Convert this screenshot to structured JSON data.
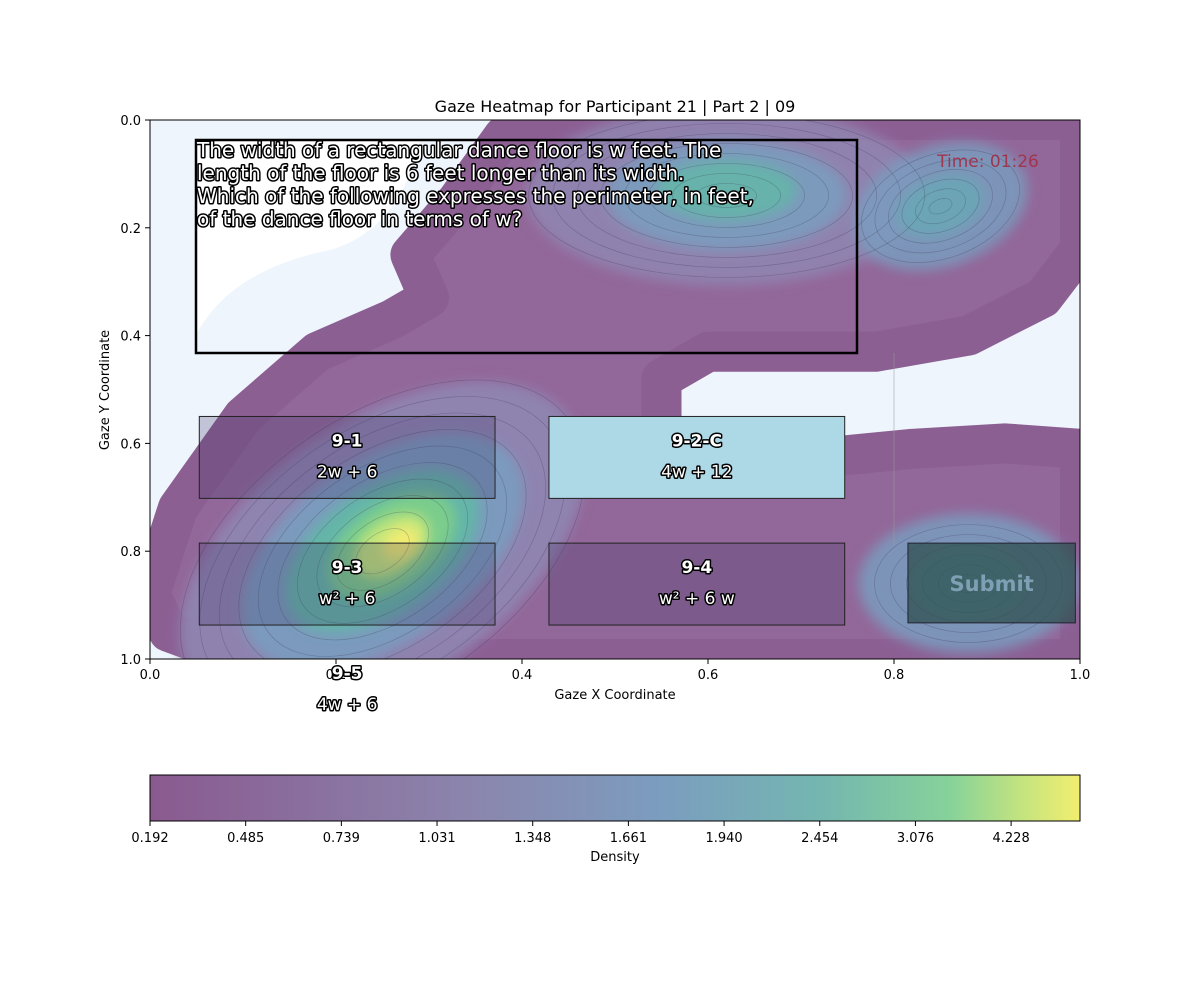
{
  "chart_data": {
    "type": "heatmap",
    "title": "Gaze Heatmap for Participant 21 | Part 2 | 09",
    "xlabel": "Gaze X Coordinate",
    "ylabel": "Gaze Y Coordinate",
    "xlim": [
      0.0,
      1.0
    ],
    "ylim": [
      1.0,
      0.0
    ],
    "y_inverted": true,
    "xticks": [
      "0.0",
      "0.2",
      "0.4",
      "0.6",
      "0.8",
      "1.0"
    ],
    "yticks": [
      "0.0",
      "0.2",
      "0.4",
      "0.6",
      "0.8",
      "1.0"
    ],
    "colormap": "viridis",
    "density_peaks": [
      {
        "x": 0.25,
        "y": 0.8,
        "density": 4.7
      },
      {
        "x": 0.62,
        "y": 0.14,
        "density": 2.9
      },
      {
        "x": 0.85,
        "y": 0.16,
        "density": 2.1
      },
      {
        "x": 0.88,
        "y": 0.86,
        "density": 1.9
      }
    ],
    "colorbar": {
      "label": "Density",
      "ticks": [
        "0.192",
        "0.485",
        "0.739",
        "1.031",
        "1.348",
        "1.661",
        "1.940",
        "2.454",
        "3.076",
        "4.228"
      ],
      "tick_positions": [
        0.192,
        0.485,
        0.739,
        1.031,
        1.348,
        1.661,
        1.94,
        2.454,
        3.076,
        4.228
      ],
      "levels": 40,
      "min": 0.192,
      "max": 5.0
    },
    "question": {
      "lines": [
        "The width of a rectangular dance floor is w feet. The",
        "length of the floor is 6 feet longer than its width.",
        "Which of the following expresses the perimeter, in feet,",
        "of the dance floor in terms of w?"
      ]
    },
    "timer": "Time: 01:26",
    "options": [
      {
        "id": "9-1",
        "text": "2w + 6",
        "selected": false
      },
      {
        "id": "9-2-C",
        "text": "4w + 12",
        "selected": true
      },
      {
        "id": "9-3",
        "text": "w² + 6",
        "selected": false
      },
      {
        "id": "9-4",
        "text": "w² + 6 w",
        "selected": false
      },
      {
        "id": "9-5",
        "text": "4w + 6",
        "selected": false
      }
    ],
    "submit_label": "Submit",
    "colors": {
      "background_panel": "#eef5fc",
      "selected_option": "#add8e6",
      "timer_text": "#a0364e",
      "submit_button": "#2f4f4f"
    }
  }
}
